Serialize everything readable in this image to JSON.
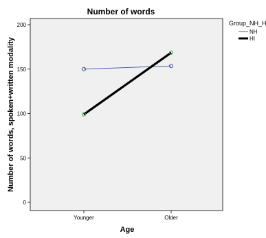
{
  "chart_data": {
    "type": "line",
    "title": "Number of words",
    "xlabel": "Age",
    "ylabel": "Number of words, spoken+written modality",
    "categories": [
      "Younger",
      "Older"
    ],
    "ylim": [
      0,
      200
    ],
    "yticks": [
      0,
      50,
      100,
      150,
      200
    ],
    "grid": false,
    "legend": {
      "title": "Group_NH_H",
      "position": "right"
    },
    "series": [
      {
        "name": "NH",
        "values": [
          150,
          153.5
        ],
        "color": "#3a4fa0",
        "marker_color": "#3a4fa0",
        "line_style": "thin"
      },
      {
        "name": "HI",
        "values": [
          99,
          168.5
        ],
        "color": "#000000",
        "marker_color": "#2fa84f",
        "line_style": "thick"
      }
    ],
    "background_color": "#f0f0f0"
  }
}
